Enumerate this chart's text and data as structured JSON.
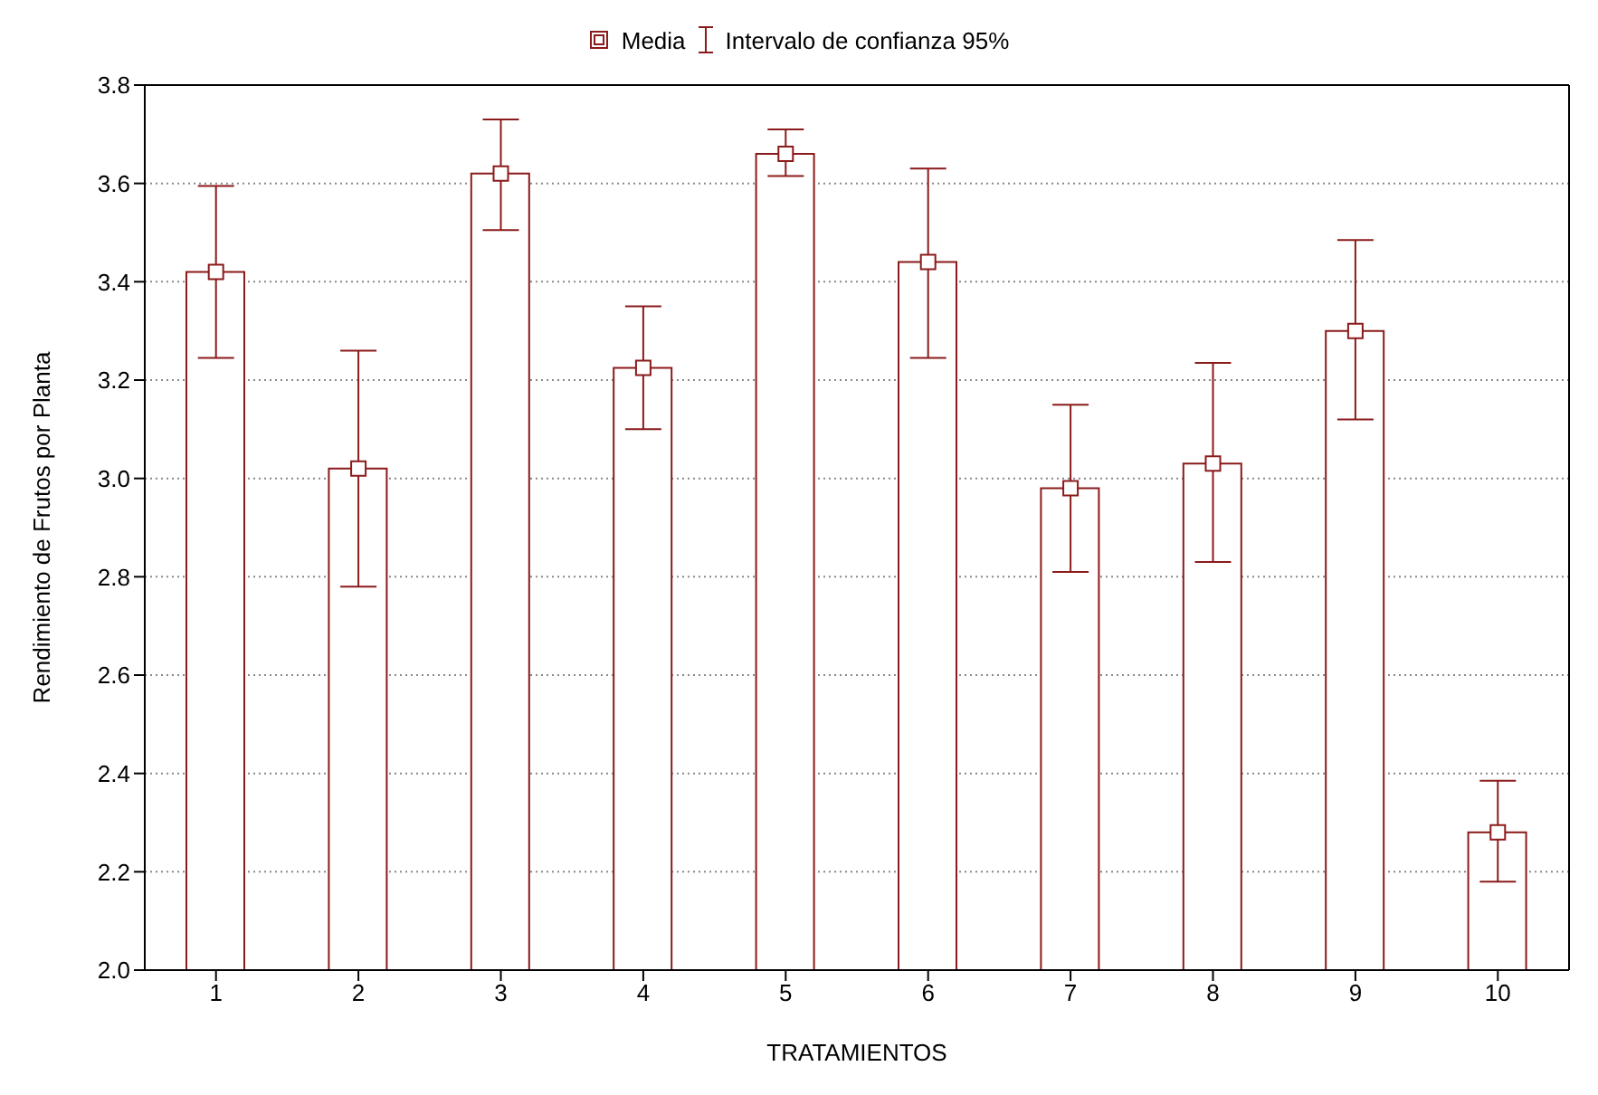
{
  "chart_data": {
    "type": "bar",
    "xlabel": "TRATAMIENTOS",
    "ylabel": "Rendimiento de Frutos por Planta",
    "categories": [
      "1",
      "2",
      "3",
      "4",
      "5",
      "6",
      "7",
      "8",
      "9",
      "10"
    ],
    "series": [
      {
        "color": "#ffffff",
        "values": [
          3.42,
          3.02,
          3.62,
          3.225,
          3.66,
          3.44,
          2.98,
          3.03,
          3.3,
          2.28
        ]
      },
      {
        "type": "scatter",
        "name": "Media",
        "color": "#8b1a1a",
        "x": [
          "1",
          "2",
          "3",
          "4",
          "5",
          "6",
          "7",
          "8",
          "9",
          "10"
        ],
        "values": [
          3.42,
          3.02,
          3.62,
          3.225,
          3.66,
          3.44,
          2.98,
          3.03,
          3.3,
          2.28
        ],
        "errors": [
          [
            3.245,
            3.595
          ],
          [
            2.78,
            3.26
          ],
          [
            3.505,
            3.73
          ],
          [
            3.1,
            3.35
          ],
          [
            3.615,
            3.71
          ],
          [
            3.245,
            3.63
          ],
          [
            2.81,
            3.15
          ],
          [
            2.83,
            3.235
          ],
          [
            3.12,
            3.485
          ],
          [
            2.18,
            2.385
          ]
        ]
      }
    ],
    "annotations": [
      "Intervalo de confianza 95%"
    ],
    "ylim": [
      2.0,
      3.8
    ],
    "yticks": [
      {
        "value": 2,
        "label": "2.0"
      },
      2.2,
      2.4,
      2.6,
      2.8,
      {
        "value": 3,
        "label": "3.0"
      },
      3.2,
      3.4,
      3.6,
      3.8
    ],
    "grid": "y",
    "legend": "top",
    "marker": "square"
  }
}
